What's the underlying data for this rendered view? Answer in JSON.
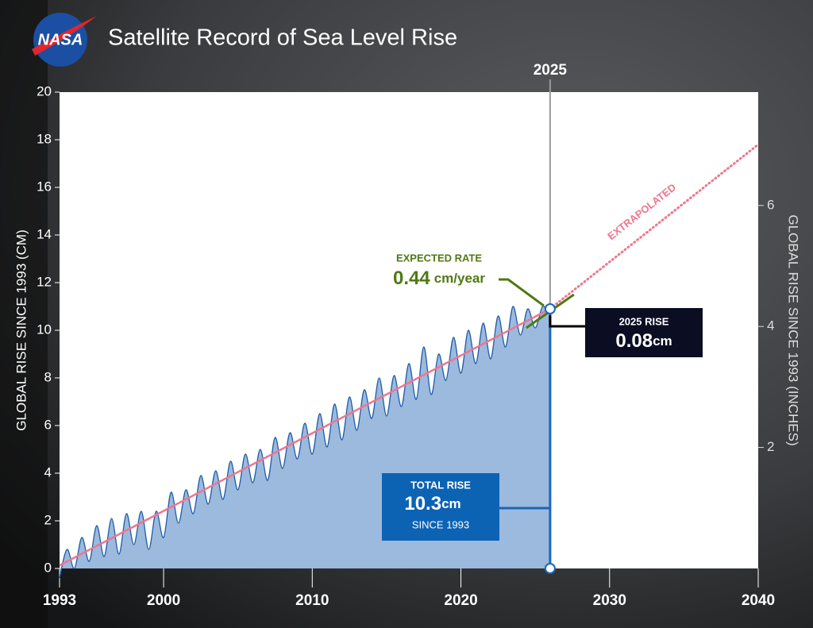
{
  "chart_data": {
    "type": "area",
    "title": "Satellite Record of Sea Level Rise",
    "logo": "NASA",
    "y_label": "GLOBAL RISE SINCE 1993 (CM)",
    "y2_label": "GLOBAL RISE SINCE 1993 (INCHES)",
    "x": [
      1993,
      1993.5,
      1994,
      1994.5,
      1995,
      1995.5,
      1996,
      1996.5,
      1997,
      1997.5,
      1998,
      1998.5,
      1999,
      1999.5,
      2000,
      2000.5,
      2001,
      2001.5,
      2002,
      2002.5,
      2003,
      2003.5,
      2004,
      2004.5,
      2005,
      2005.5,
      2006,
      2006.5,
      2007,
      2007.5,
      2008,
      2008.5,
      2009,
      2009.5,
      2010,
      2010.5,
      2011,
      2011.5,
      2012,
      2012.5,
      2013,
      2013.5,
      2014,
      2014.5,
      2015,
      2015.5,
      2016,
      2016.5,
      2017,
      2017.5,
      2018,
      2018.5,
      2019,
      2019.5,
      2020,
      2020.5,
      2021,
      2021.5,
      2022,
      2022.5,
      2023,
      2023.5,
      2024,
      2024.5,
      2025,
      2025.5,
      2026
    ],
    "values": [
      -0.4,
      0.8,
      0.0,
      1.3,
      0.3,
      1.8,
      0.5,
      2.1,
      0.6,
      2.3,
      1.0,
      2.4,
      0.8,
      2.4,
      1.3,
      3.2,
      1.9,
      3.3,
      2.3,
      3.9,
      2.7,
      4.1,
      2.9,
      4.5,
      3.3,
      4.8,
      3.6,
      5.0,
      3.7,
      5.5,
      4.2,
      5.7,
      4.6,
      6.1,
      4.8,
      6.5,
      5.1,
      6.9,
      5.4,
      7.2,
      5.8,
      7.5,
      6.3,
      8.0,
      6.4,
      8.1,
      6.8,
      8.6,
      7.1,
      9.3,
      7.3,
      9.0,
      7.9,
      9.7,
      8.2,
      10.0,
      8.6,
      10.3,
      8.8,
      10.6,
      9.3,
      11.0,
      9.8,
      10.9,
      10.1,
      11.0,
      10.6
    ],
    "color": "#9cb9de",
    "line_color": "#1e5ea6",
    "xlim": [
      1993,
      2040
    ],
    "xticks": [
      1993,
      2000,
      2010,
      2020,
      2030,
      2040
    ],
    "ylim": [
      0,
      20
    ],
    "yticks": [
      0,
      2,
      4,
      6,
      8,
      10,
      12,
      14,
      16,
      18,
      20
    ],
    "y2lim": [
      0,
      7.874
    ],
    "y2ticks": [
      2,
      4,
      6
    ],
    "trend": {
      "x": [
        1993,
        2026
      ],
      "values": [
        0.13,
        10.9
      ],
      "color": "#f0758e"
    },
    "extrapolation": {
      "label": "EXTRAPOLATED",
      "x": [
        2026,
        2040
      ],
      "values": [
        10.9,
        17.8
      ]
    },
    "expected_rate": {
      "label": "EXPECTED RATE",
      "value": 0.44,
      "unit": "cm/year",
      "x": [
        2024.4,
        2027.6
      ],
      "values": [
        10.1,
        11.5
      ],
      "color": "#4f7a13"
    },
    "marker": {
      "label": "2025",
      "x": 2026
    },
    "rise_2025": {
      "title": "2025 RISE",
      "value": 0.08,
      "unit": "cm"
    },
    "total_rise": {
      "title": "TOTAL RISE",
      "value": 10.3,
      "unit": "cm",
      "note": "SINCE 1993"
    }
  }
}
